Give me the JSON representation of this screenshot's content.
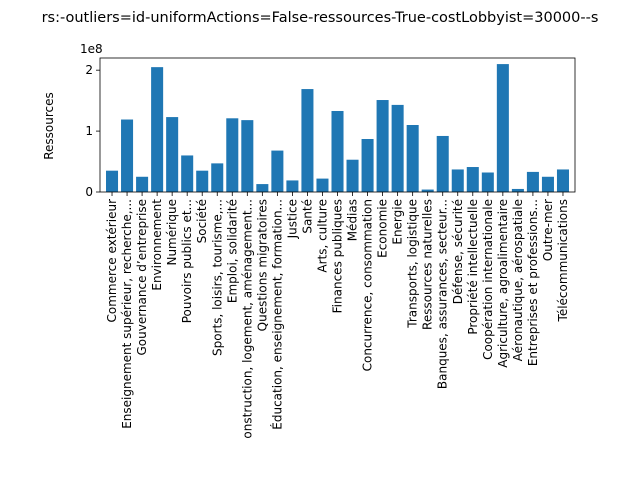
{
  "chart_data": {
    "type": "bar",
    "title": "rs:-outliers=id-uniformActions=False-ressources-True-costLobbyist=30000--s",
    "xlabel": "",
    "ylabel": "Ressources",
    "y_scale_label": "1e8",
    "ylim": [
      0,
      2.2
    ],
    "yticks": [
      0,
      1,
      2
    ],
    "ytick_labels": [
      "0",
      "1",
      "2"
    ],
    "grid": false,
    "bar_color": "#1f77b4",
    "categories": [
      "Commerce extérieur",
      "Enseignement supérieur, recherche,...",
      "Gouvernance d’entreprise",
      "Environnement",
      "Numérique",
      "Pouvoirs publics et...",
      "Société",
      "Sports, loisirs, tourisme,...",
      "Emploi, solidarité",
      "onstruction, logement, aménagement...",
      "Questions migratoires",
      "Éducation, enseignement, formation...",
      "Justice",
      "Santé",
      "Arts, culture",
      "Finances publiques",
      "Médias",
      "Concurrence, consommation",
      "Economie",
      "Energie",
      "Transports, logistique",
      "Ressources naturelles",
      "Banques, assurances, secteur...",
      "Défense, sécurité",
      "Propriété intellectuelle",
      "Coopération internationale",
      "Agriculture, agroalimentaire",
      "Aéronautique, aérospatiale",
      "Entreprises et professions...",
      "Outre-mer",
      "Télécommunications"
    ],
    "series": [
      {
        "values": [
          0.35,
          1.19,
          0.25,
          2.05,
          1.23,
          0.6,
          0.35,
          0.47,
          1.21,
          1.18,
          0.13,
          0.68,
          0.19,
          1.69,
          0.22,
          1.33,
          0.53,
          0.87,
          1.51,
          1.43,
          1.1,
          0.04,
          0.92,
          0.37,
          0.41,
          0.32,
          2.1,
          0.05,
          0.33,
          0.25,
          0.37
        ]
      }
    ]
  }
}
